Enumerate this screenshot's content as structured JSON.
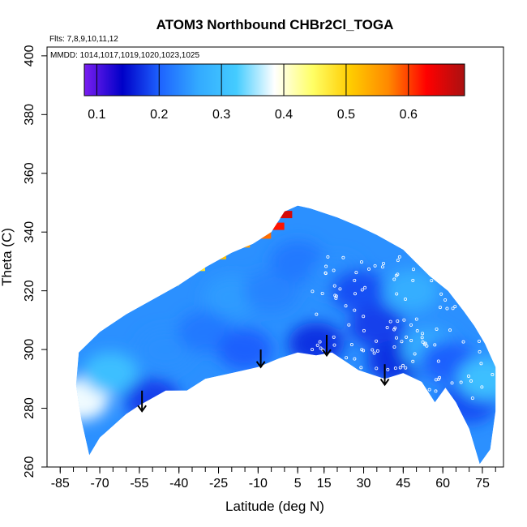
{
  "chart_data": {
    "type": "heatmap",
    "title": "ATOM3 Northbound CHBr2Cl_TOGA",
    "flights_label": "Flts: 7,8,9,10,11,12",
    "dates_label": "MMDD: 1014,1017,1019,1020,1023,1025",
    "xlabel": "Latitude (deg N)",
    "ylabel": "Theta (C)",
    "xlim": [
      -90,
      83
    ],
    "ylim": [
      260,
      403
    ],
    "x_ticks": [
      -85,
      -70,
      -55,
      -40,
      -25,
      -10,
      5,
      15,
      30,
      45,
      60,
      75
    ],
    "y_ticks": [
      260,
      280,
      300,
      320,
      340,
      360,
      380,
      400
    ],
    "colorbar": {
      "range": [
        0.08,
        0.69
      ],
      "ticks": [
        0.1,
        0.2,
        0.3,
        0.4,
        0.5,
        0.6
      ],
      "colors": [
        "#7a1ef0",
        "#0000c8",
        "#1e64ff",
        "#33aaff",
        "#44ccff",
        "#ffffff",
        "#ffff66",
        "#ffcc00",
        "#ff8800",
        "#ff0000",
        "#aa1111"
      ]
    },
    "boundary_top": [
      [
        -78,
        299
      ],
      [
        -70,
        306
      ],
      [
        -60,
        312
      ],
      [
        -48,
        318
      ],
      [
        -40,
        322
      ],
      [
        -30,
        328
      ],
      [
        -20,
        333
      ],
      [
        -12,
        336
      ],
      [
        -5,
        340
      ],
      [
        0,
        347
      ],
      [
        5,
        349
      ],
      [
        10,
        348
      ],
      [
        20,
        345
      ],
      [
        28,
        342
      ],
      [
        35,
        339
      ],
      [
        45,
        334
      ],
      [
        55,
        325
      ],
      [
        62,
        320
      ],
      [
        68,
        313
      ],
      [
        72,
        308
      ],
      [
        76,
        302
      ],
      [
        80,
        294
      ]
    ],
    "boundary_bottom": [
      [
        -79,
        288
      ],
      [
        -77,
        276
      ],
      [
        -74,
        264
      ],
      [
        -70,
        270
      ],
      [
        -60,
        278
      ],
      [
        -55,
        281
      ],
      [
        -45,
        286
      ],
      [
        -37,
        286
      ],
      [
        -30,
        290
      ],
      [
        -20,
        292
      ],
      [
        -10,
        294
      ],
      [
        -2,
        297
      ],
      [
        5,
        299
      ],
      [
        12,
        298
      ],
      [
        18,
        299
      ],
      [
        28,
        293
      ],
      [
        38,
        290
      ],
      [
        45,
        292
      ],
      [
        52,
        289
      ],
      [
        57,
        282
      ],
      [
        61,
        287
      ],
      [
        65,
        282
      ],
      [
        70,
        273
      ],
      [
        74,
        261
      ],
      [
        78,
        266
      ],
      [
        80,
        279
      ]
    ],
    "field_cells": [
      {
        "x": -77,
        "y": 283,
        "v": 0.38
      },
      {
        "x": -66,
        "y": 292,
        "v": 0.3
      },
      {
        "x": -50,
        "y": 283,
        "v": 0.18
      },
      {
        "x": -45,
        "y": 300,
        "v": 0.24
      },
      {
        "x": -30,
        "y": 306,
        "v": 0.22
      },
      {
        "x": -20,
        "y": 318,
        "v": 0.25
      },
      {
        "x": -15,
        "y": 300,
        "v": 0.2
      },
      {
        "x": -5,
        "y": 320,
        "v": 0.23
      },
      {
        "x": 5,
        "y": 330,
        "v": 0.22
      },
      {
        "x": 12,
        "y": 302,
        "v": 0.17
      },
      {
        "x": 20,
        "y": 325,
        "v": 0.24
      },
      {
        "x": 28,
        "y": 320,
        "v": 0.19
      },
      {
        "x": 35,
        "y": 308,
        "v": 0.18
      },
      {
        "x": 42,
        "y": 296,
        "v": 0.17
      },
      {
        "x": 48,
        "y": 320,
        "v": 0.27
      },
      {
        "x": 55,
        "y": 300,
        "v": 0.27
      },
      {
        "x": 62,
        "y": 296,
        "v": 0.2
      },
      {
        "x": 70,
        "y": 282,
        "v": 0.19
      },
      {
        "x": 76,
        "y": 290,
        "v": 0.3
      }
    ],
    "high_band": [
      [
        -45,
        322,
        0.45
      ],
      [
        -35,
        327,
        0.48
      ],
      [
        -27,
        331,
        0.52
      ],
      [
        -18,
        335,
        0.55
      ],
      [
        -10,
        338,
        0.58
      ],
      [
        -5,
        341,
        0.62
      ],
      [
        -2,
        345,
        0.66
      ]
    ],
    "arrows": [
      {
        "x": -54,
        "y_top": 286,
        "y_bottom": 279
      },
      {
        "x": -9,
        "y_top": 300,
        "y_bottom": 294
      },
      {
        "x": 16,
        "y_top": 305,
        "y_bottom": 298
      },
      {
        "x": 38,
        "y_top": 295,
        "y_bottom": 288
      }
    ]
  }
}
